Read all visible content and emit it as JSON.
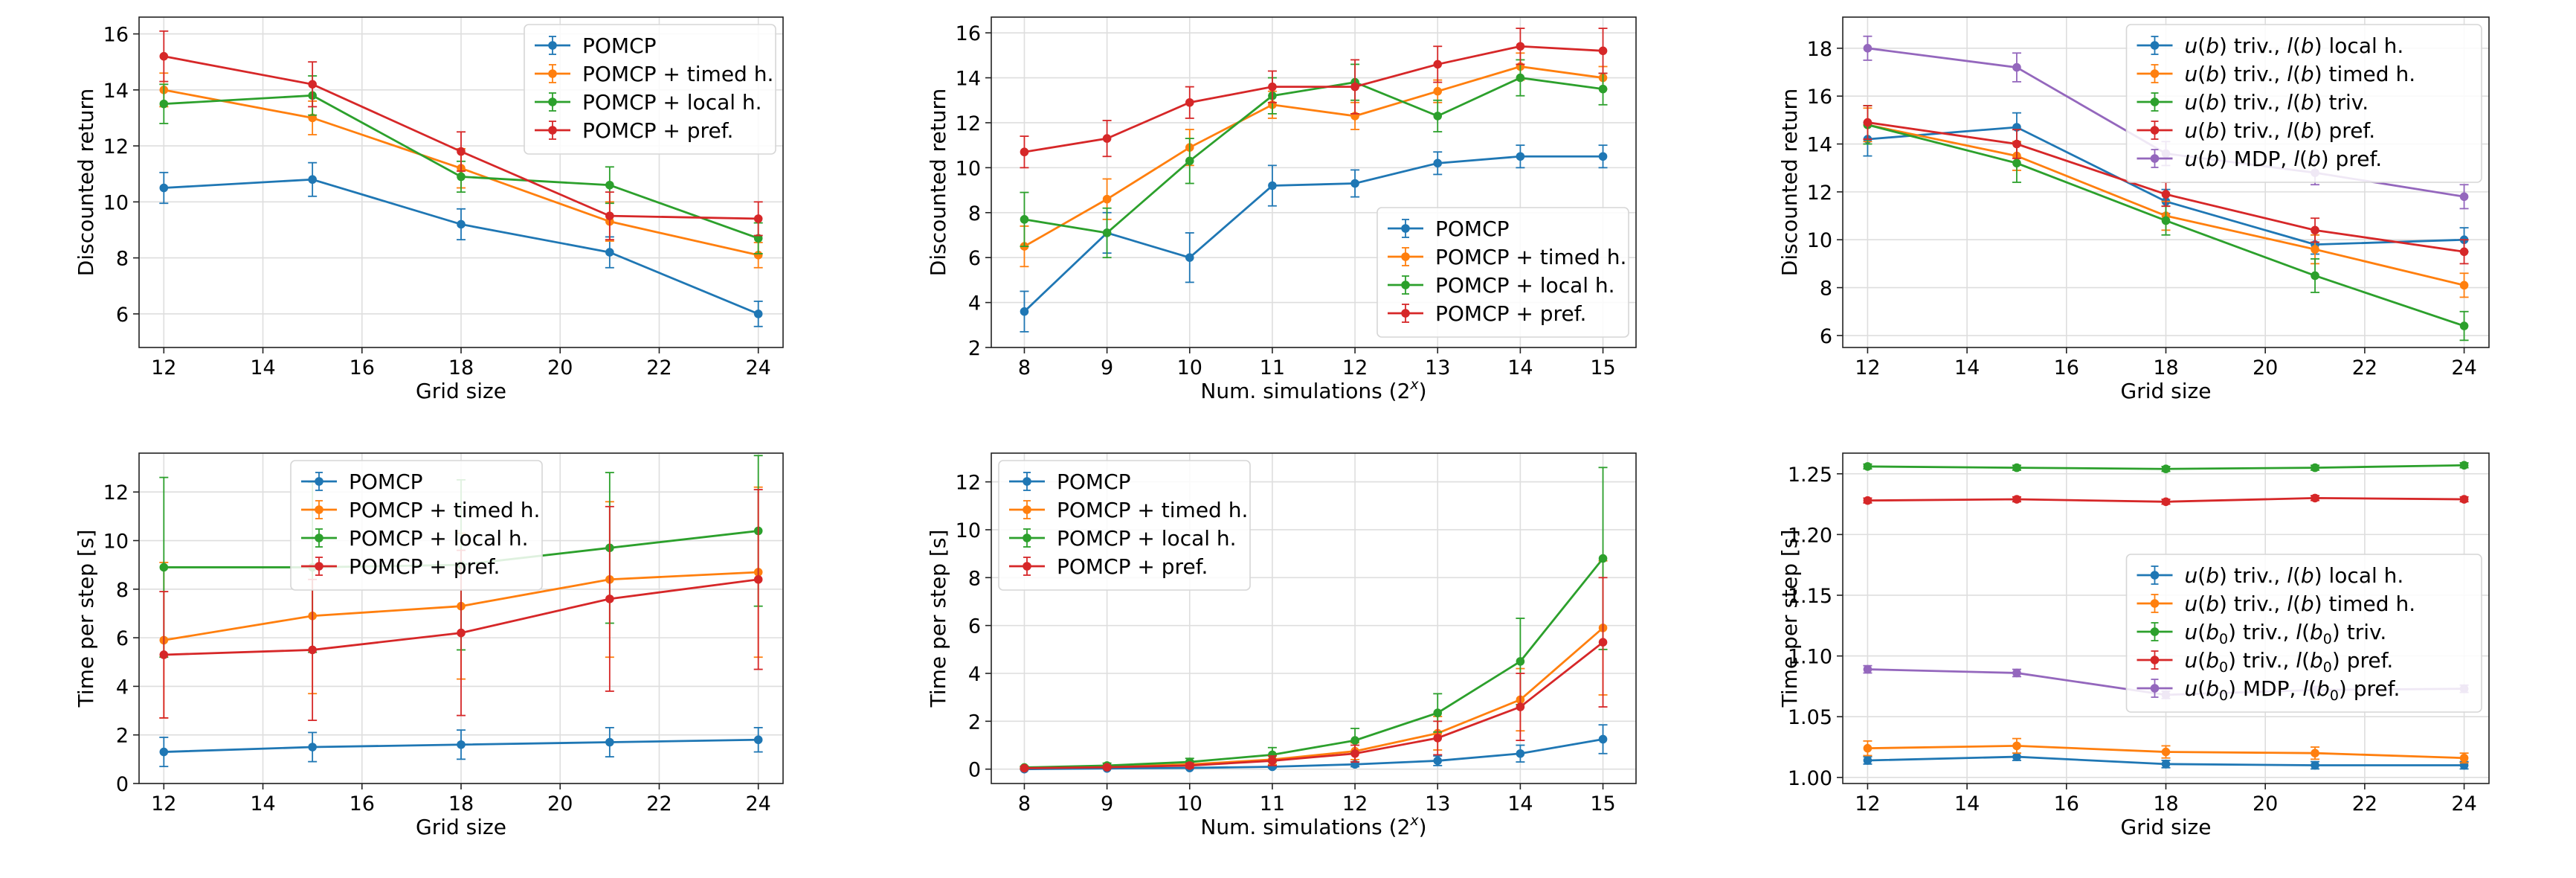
{
  "colors": {
    "blue": "#1f77b4",
    "orange": "#ff7f0e",
    "green": "#2ca02c",
    "red": "#d62728",
    "purple": "#9467bd"
  },
  "chart_data": [
    {
      "id": "top-left",
      "type": "line",
      "xlabel": "Grid size",
      "ylabel": "Discounted return",
      "xlim": [
        11.5,
        24.5
      ],
      "ylim": [
        4.8,
        16.6
      ],
      "xticks": [
        12,
        14,
        16,
        18,
        20,
        22,
        24
      ],
      "yticks": [
        6,
        8,
        10,
        12,
        14,
        16
      ],
      "x": [
        12,
        15,
        18,
        21,
        24
      ],
      "legend_position": "top-right",
      "series": [
        {
          "name": "POMCP",
          "color": "blue",
          "values": [
            10.5,
            10.8,
            9.2,
            8.2,
            6.0
          ],
          "errors": [
            0.55,
            0.6,
            0.55,
            0.55,
            0.45
          ]
        },
        {
          "name": "POMCP + timed h.",
          "color": "orange",
          "values": [
            14.0,
            13.0,
            11.2,
            9.3,
            8.1
          ],
          "errors": [
            0.6,
            0.6,
            0.7,
            0.7,
            0.45
          ]
        },
        {
          "name": "POMCP + local h.",
          "color": "green",
          "values": [
            13.5,
            13.8,
            10.9,
            10.6,
            8.7
          ],
          "errors": [
            0.7,
            0.7,
            0.55,
            0.65,
            0.55
          ]
        },
        {
          "name": "POMCP + pref.",
          "color": "red",
          "values": [
            15.2,
            14.2,
            11.8,
            9.5,
            9.4
          ],
          "errors": [
            0.9,
            0.8,
            0.7,
            0.85,
            0.6
          ]
        }
      ]
    },
    {
      "id": "top-middle",
      "type": "line",
      "xlabel": "Num. simulations (2^x)",
      "ylabel": "Discounted return",
      "xlim": [
        7.6,
        15.4
      ],
      "ylim": [
        2.0,
        16.7
      ],
      "xticks": [
        8,
        9,
        10,
        11,
        12,
        13,
        14,
        15
      ],
      "yticks": [
        2,
        4,
        6,
        8,
        10,
        12,
        14,
        16
      ],
      "x": [
        8,
        9,
        10,
        11,
        12,
        13,
        14,
        15
      ],
      "legend_position": "lower-right",
      "series": [
        {
          "name": "POMCP",
          "color": "blue",
          "values": [
            3.6,
            7.1,
            6.0,
            9.2,
            9.3,
            10.2,
            10.5,
            10.5
          ],
          "errors": [
            0.9,
            0.9,
            1.1,
            0.9,
            0.6,
            0.5,
            0.5,
            0.5
          ]
        },
        {
          "name": "POMCP + timed h.",
          "color": "orange",
          "values": [
            6.5,
            8.6,
            10.9,
            12.8,
            12.3,
            13.4,
            14.5,
            14.0
          ],
          "errors": [
            0.9,
            0.9,
            0.8,
            0.6,
            0.6,
            0.5,
            0.6,
            0.5
          ]
        },
        {
          "name": "POMCP + local h.",
          "color": "green",
          "values": [
            7.7,
            7.1,
            10.3,
            13.2,
            13.8,
            12.3,
            14.0,
            13.5
          ],
          "errors": [
            1.2,
            1.1,
            1.0,
            0.8,
            0.8,
            0.7,
            0.8,
            0.7
          ]
        },
        {
          "name": "POMCP + pref.",
          "color": "red",
          "values": [
            10.7,
            11.3,
            12.9,
            13.6,
            13.6,
            14.6,
            15.4,
            15.2
          ],
          "errors": [
            0.7,
            0.8,
            0.7,
            0.7,
            1.2,
            0.8,
            0.8,
            1.0
          ]
        }
      ]
    },
    {
      "id": "top-right",
      "type": "line",
      "xlabel": "Grid size",
      "ylabel": "Discounted return",
      "xlim": [
        11.5,
        24.5
      ],
      "ylim": [
        5.5,
        19.3
      ],
      "xticks": [
        12,
        14,
        16,
        18,
        20,
        22,
        24
      ],
      "yticks": [
        6,
        8,
        10,
        12,
        14,
        16,
        18
      ],
      "x": [
        12,
        15,
        18,
        21,
        24
      ],
      "legend_position": "top-right",
      "series": [
        {
          "name": "u(b) triv., l(b) local h.",
          "color": "blue",
          "values": [
            14.2,
            14.7,
            11.6,
            9.8,
            10.0
          ],
          "errors": [
            0.7,
            0.6,
            0.5,
            0.4,
            0.5
          ]
        },
        {
          "name": "u(b) triv., l(b) timed h.",
          "color": "orange",
          "values": [
            14.8,
            13.5,
            11.0,
            9.6,
            8.1
          ],
          "errors": [
            0.7,
            0.6,
            0.6,
            0.6,
            0.5
          ]
        },
        {
          "name": "u(b) triv., l(b) triv.",
          "color": "green",
          "values": [
            14.8,
            13.2,
            10.8,
            8.5,
            6.4
          ],
          "errors": [
            0.8,
            0.8,
            0.6,
            0.7,
            0.6
          ]
        },
        {
          "name": "u(b) triv., l(b) pref.",
          "color": "red",
          "values": [
            14.9,
            14.0,
            11.9,
            10.4,
            9.5
          ],
          "errors": [
            0.7,
            0.6,
            0.5,
            0.5,
            0.5
          ]
        },
        {
          "name": "u(b) MDP, l(b) pref.",
          "color": "purple",
          "values": [
            18.0,
            17.2,
            13.6,
            12.8,
            11.8
          ],
          "errors": [
            0.5,
            0.6,
            0.5,
            0.5,
            0.5
          ]
        }
      ]
    },
    {
      "id": "bottom-left",
      "type": "line",
      "xlabel": "Grid size",
      "ylabel": "Time per step [s]",
      "xlim": [
        11.5,
        24.5
      ],
      "ylim": [
        0,
        13.6
      ],
      "xticks": [
        12,
        14,
        16,
        18,
        20,
        22,
        24
      ],
      "yticks": [
        0,
        2,
        4,
        6,
        8,
        10,
        12
      ],
      "x": [
        12,
        15,
        18,
        21,
        24
      ],
      "legend_position": "top-center",
      "series": [
        {
          "name": "POMCP",
          "color": "blue",
          "values": [
            1.3,
            1.5,
            1.6,
            1.7,
            1.8
          ],
          "errors": [
            0.6,
            0.6,
            0.6,
            0.6,
            0.5
          ]
        },
        {
          "name": "POMCP + timed h.",
          "color": "orange",
          "values": [
            5.9,
            6.9,
            7.3,
            8.4,
            8.7
          ],
          "errors": [
            3.2,
            3.2,
            3.0,
            3.2,
            3.5
          ]
        },
        {
          "name": "POMCP + local h.",
          "color": "green",
          "values": [
            8.9,
            8.9,
            9.0,
            9.7,
            10.4
          ],
          "errors": [
            3.7,
            3.5,
            3.5,
            3.1,
            3.1
          ]
        },
        {
          "name": "POMCP + pref.",
          "color": "red",
          "values": [
            5.3,
            5.5,
            6.2,
            7.6,
            8.4
          ],
          "errors": [
            2.6,
            2.9,
            3.4,
            3.8,
            3.7
          ]
        }
      ]
    },
    {
      "id": "bottom-middle",
      "type": "line",
      "xlabel": "Num. simulations (2^x)",
      "ylabel": "Time per step [s]",
      "xlim": [
        7.6,
        15.4
      ],
      "ylim": [
        -0.6,
        13.2
      ],
      "xticks": [
        8,
        9,
        10,
        11,
        12,
        13,
        14,
        15
      ],
      "yticks": [
        0,
        2,
        4,
        6,
        8,
        10,
        12
      ],
      "x": [
        8,
        9,
        10,
        11,
        12,
        13,
        14,
        15
      ],
      "legend_position": "top-left",
      "series": [
        {
          "name": "POMCP",
          "color": "blue",
          "values": [
            0.0,
            0.03,
            0.05,
            0.1,
            0.2,
            0.35,
            0.65,
            1.25
          ],
          "errors": [
            0.02,
            0.02,
            0.03,
            0.05,
            0.1,
            0.2,
            0.35,
            0.6
          ]
        },
        {
          "name": "POMCP + timed h.",
          "color": "orange",
          "values": [
            0.05,
            0.1,
            0.2,
            0.4,
            0.75,
            1.5,
            2.9,
            5.9
          ],
          "errors": [
            0.05,
            0.05,
            0.1,
            0.2,
            0.35,
            0.7,
            1.3,
            2.8
          ]
        },
        {
          "name": "POMCP + local h.",
          "color": "green",
          "values": [
            0.07,
            0.15,
            0.3,
            0.6,
            1.2,
            2.35,
            4.5,
            8.8
          ],
          "errors": [
            0.05,
            0.1,
            0.15,
            0.3,
            0.5,
            0.8,
            1.8,
            3.8
          ]
        },
        {
          "name": "POMCP + pref.",
          "color": "red",
          "values": [
            0.04,
            0.08,
            0.15,
            0.35,
            0.65,
            1.3,
            2.6,
            5.3
          ],
          "errors": [
            0.03,
            0.05,
            0.1,
            0.2,
            0.35,
            0.7,
            1.4,
            2.7
          ]
        }
      ]
    },
    {
      "id": "bottom-right",
      "type": "line",
      "xlabel": "Grid size",
      "ylabel": "Time per step [s]",
      "xlim": [
        11.5,
        24.5
      ],
      "ylim": [
        0.995,
        1.267
      ],
      "xticks": [
        12,
        14,
        16,
        18,
        20,
        22,
        24
      ],
      "yticks": [
        1.0,
        1.05,
        1.1,
        1.15,
        1.2,
        1.25
      ],
      "ytick_decimals": 2,
      "x": [
        12,
        15,
        18,
        21,
        24
      ],
      "legend_position": "center-right",
      "series": [
        {
          "name": "u(b) triv., l(b) local h.",
          "color": "blue",
          "values": [
            1.014,
            1.017,
            1.011,
            1.01,
            1.01
          ],
          "errors": [
            0.003,
            0.003,
            0.003,
            0.003,
            0.003
          ]
        },
        {
          "name": "u(b) triv., l(b) timed h.",
          "color": "orange",
          "values": [
            1.024,
            1.026,
            1.021,
            1.02,
            1.016
          ],
          "errors": [
            0.006,
            0.006,
            0.005,
            0.005,
            0.004
          ]
        },
        {
          "name": "u(b0) triv., l(b0) triv.",
          "color": "green",
          "values": [
            1.256,
            1.255,
            1.254,
            1.255,
            1.257
          ],
          "errors": [
            0.002,
            0.002,
            0.002,
            0.002,
            0.002
          ]
        },
        {
          "name": "u(b0) triv., l(b0) pref.",
          "color": "red",
          "values": [
            1.228,
            1.229,
            1.227,
            1.23,
            1.229
          ],
          "errors": [
            0.002,
            0.002,
            0.002,
            0.002,
            0.002
          ]
        },
        {
          "name": "u(b0) MDP, l(b0) pref.",
          "color": "purple",
          "values": [
            1.089,
            1.086,
            1.068,
            1.072,
            1.073
          ],
          "errors": [
            0.003,
            0.003,
            0.003,
            0.003,
            0.003
          ]
        }
      ]
    }
  ]
}
